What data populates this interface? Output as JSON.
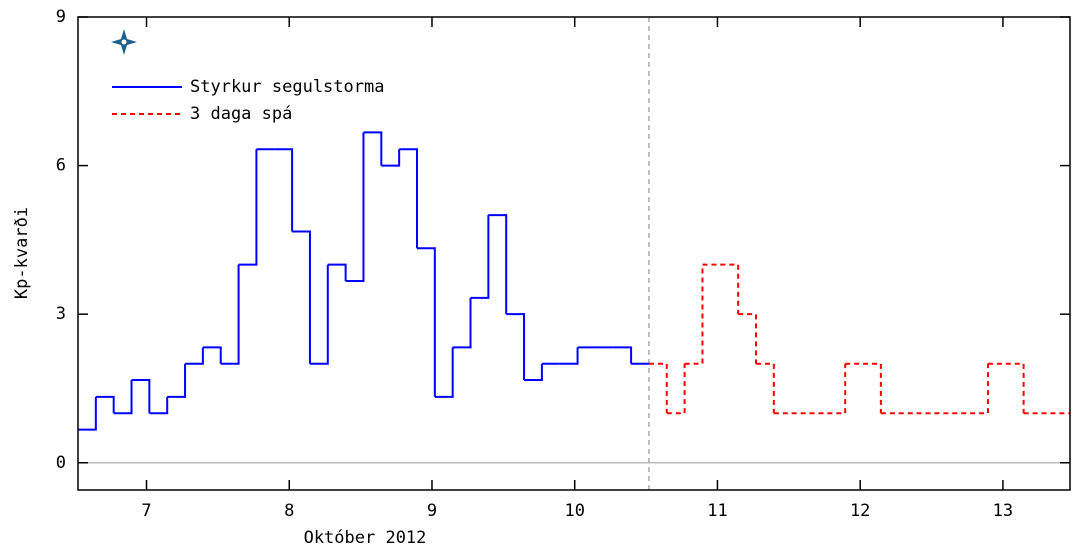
{
  "chart_data": {
    "type": "step",
    "xlabel": "Október 2012",
    "ylabel": "Kp-kvarði",
    "xlim": [
      6.52,
      13.47
    ],
    "ylim": [
      -0.55,
      9
    ],
    "xticks": [
      7,
      8,
      9,
      10,
      11,
      12,
      13
    ],
    "yticks": [
      0,
      3,
      6,
      9
    ],
    "series": [
      {
        "name": "Styrkur segulstorma",
        "color": "#0000ff",
        "dashed": false,
        "x": [
          6.52,
          6.645,
          6.77,
          6.895,
          7.02,
          7.145,
          7.27,
          7.395,
          7.52,
          7.645,
          7.77,
          7.895,
          8.02,
          8.145,
          8.27,
          8.395,
          8.52,
          8.645,
          8.77,
          8.895,
          9.02,
          9.145,
          9.27,
          9.395,
          9.52,
          9.645,
          9.77,
          9.895,
          10.02,
          10.145,
          10.27,
          10.395
        ],
        "values": [
          0.67,
          1.33,
          1,
          1.67,
          1,
          1.33,
          2,
          2.33,
          2,
          4,
          6.33,
          6.33,
          4.67,
          2,
          4,
          3.67,
          6.67,
          6,
          6.33,
          4.33,
          1.33,
          2.33,
          3.33,
          5,
          3,
          1.67,
          2,
          2,
          2.33,
          2.33,
          2.33,
          2
        ]
      },
      {
        "name": "3 daga spá",
        "color": "#ff0000",
        "dashed": true,
        "x": [
          10.52,
          10.645,
          10.77,
          10.895,
          11.02,
          11.145,
          11.27,
          11.395,
          11.52,
          11.645,
          11.77,
          11.895,
          12.02,
          12.145,
          12.27,
          12.395,
          12.52,
          12.645,
          12.77,
          12.895,
          13.02,
          13.145,
          13.27,
          13.395
        ],
        "values": [
          2,
          1,
          2,
          4,
          4,
          3,
          2,
          1,
          1,
          1,
          1,
          2,
          2,
          1,
          1,
          1,
          1,
          1,
          1,
          2,
          2,
          1,
          1,
          1
        ]
      }
    ]
  }
}
